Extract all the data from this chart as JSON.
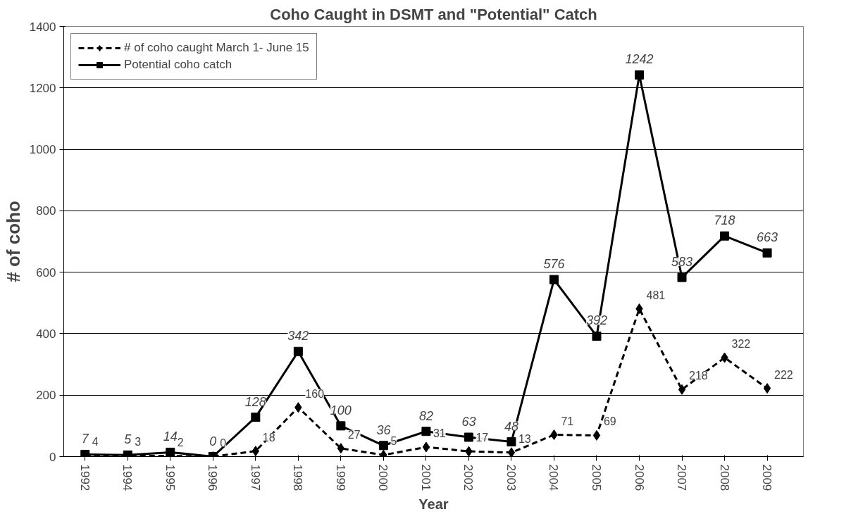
{
  "chart_data": {
    "type": "line",
    "title": "Coho Caught in DSMT and \"Potential\" Catch",
    "xlabel": "Year",
    "ylabel": "# of coho",
    "categories": [
      "1992",
      "1994",
      "1995",
      "1996",
      "1997",
      "1998",
      "1999",
      "2000",
      "2001",
      "2002",
      "2003",
      "2004",
      "2005",
      "2006",
      "2007",
      "2008",
      "2009"
    ],
    "series": [
      {
        "name": "# of coho caught March 1- June 15",
        "color": "#000000",
        "line_style": "dashed",
        "marker": "diamond",
        "values": [
          4,
          3,
          2,
          0,
          18,
          160,
          27,
          5,
          31,
          17,
          13,
          71,
          69,
          481,
          218,
          322,
          222
        ]
      },
      {
        "name": "Potential coho catch",
        "color": "#000000",
        "line_style": "solid",
        "marker": "square",
        "values": [
          7,
          5,
          14,
          0,
          128,
          342,
          100,
          36,
          82,
          63,
          48,
          576,
          392,
          1242,
          583,
          718,
          663
        ]
      }
    ],
    "ylim": [
      0,
      1400
    ],
    "yticks": [
      0,
      200,
      400,
      600,
      800,
      1000,
      1200,
      1400
    ],
    "grid": "y",
    "legend": "top left",
    "data_labels": true
  }
}
